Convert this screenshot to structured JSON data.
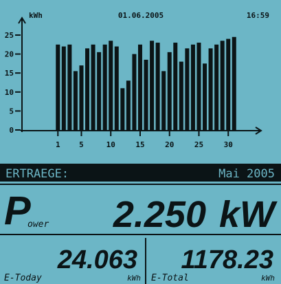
{
  "header": {
    "unit": "kWh",
    "date": "01.06.2005",
    "time": "16:59"
  },
  "chart_data": {
    "type": "bar",
    "categories": [
      "1",
      null,
      null,
      null,
      "5",
      null,
      null,
      null,
      null,
      "10",
      null,
      null,
      null,
      null,
      "15",
      null,
      null,
      null,
      null,
      "20",
      null,
      null,
      null,
      null,
      "25",
      null,
      null,
      null,
      null,
      "30",
      null
    ],
    "values": [
      22.5,
      22,
      22.5,
      15.5,
      17,
      21.5,
      22.5,
      20.5,
      22.5,
      23.5,
      22,
      11,
      13,
      20,
      22.5,
      18.5,
      23.5,
      23,
      15.5,
      20.5,
      23,
      18,
      21.5,
      22.5,
      23,
      17.5,
      21.5,
      22.5,
      23.5,
      24,
      24.5
    ],
    "color": "#0b1416",
    "ylim": [
      0,
      25
    ],
    "yticks": [
      0,
      5,
      10,
      15,
      20,
      25
    ]
  },
  "banner": {
    "label": "ERTRAEGE:",
    "period": "Mai 2005"
  },
  "power": {
    "letter": "P",
    "subscript": "ower",
    "value": "2.250",
    "unit": "kW"
  },
  "today": {
    "value": "24.063",
    "label": "E-Today",
    "unit": "kWh"
  },
  "total": {
    "value": "1178.23",
    "label": "E-Total",
    "unit": "kWh"
  }
}
